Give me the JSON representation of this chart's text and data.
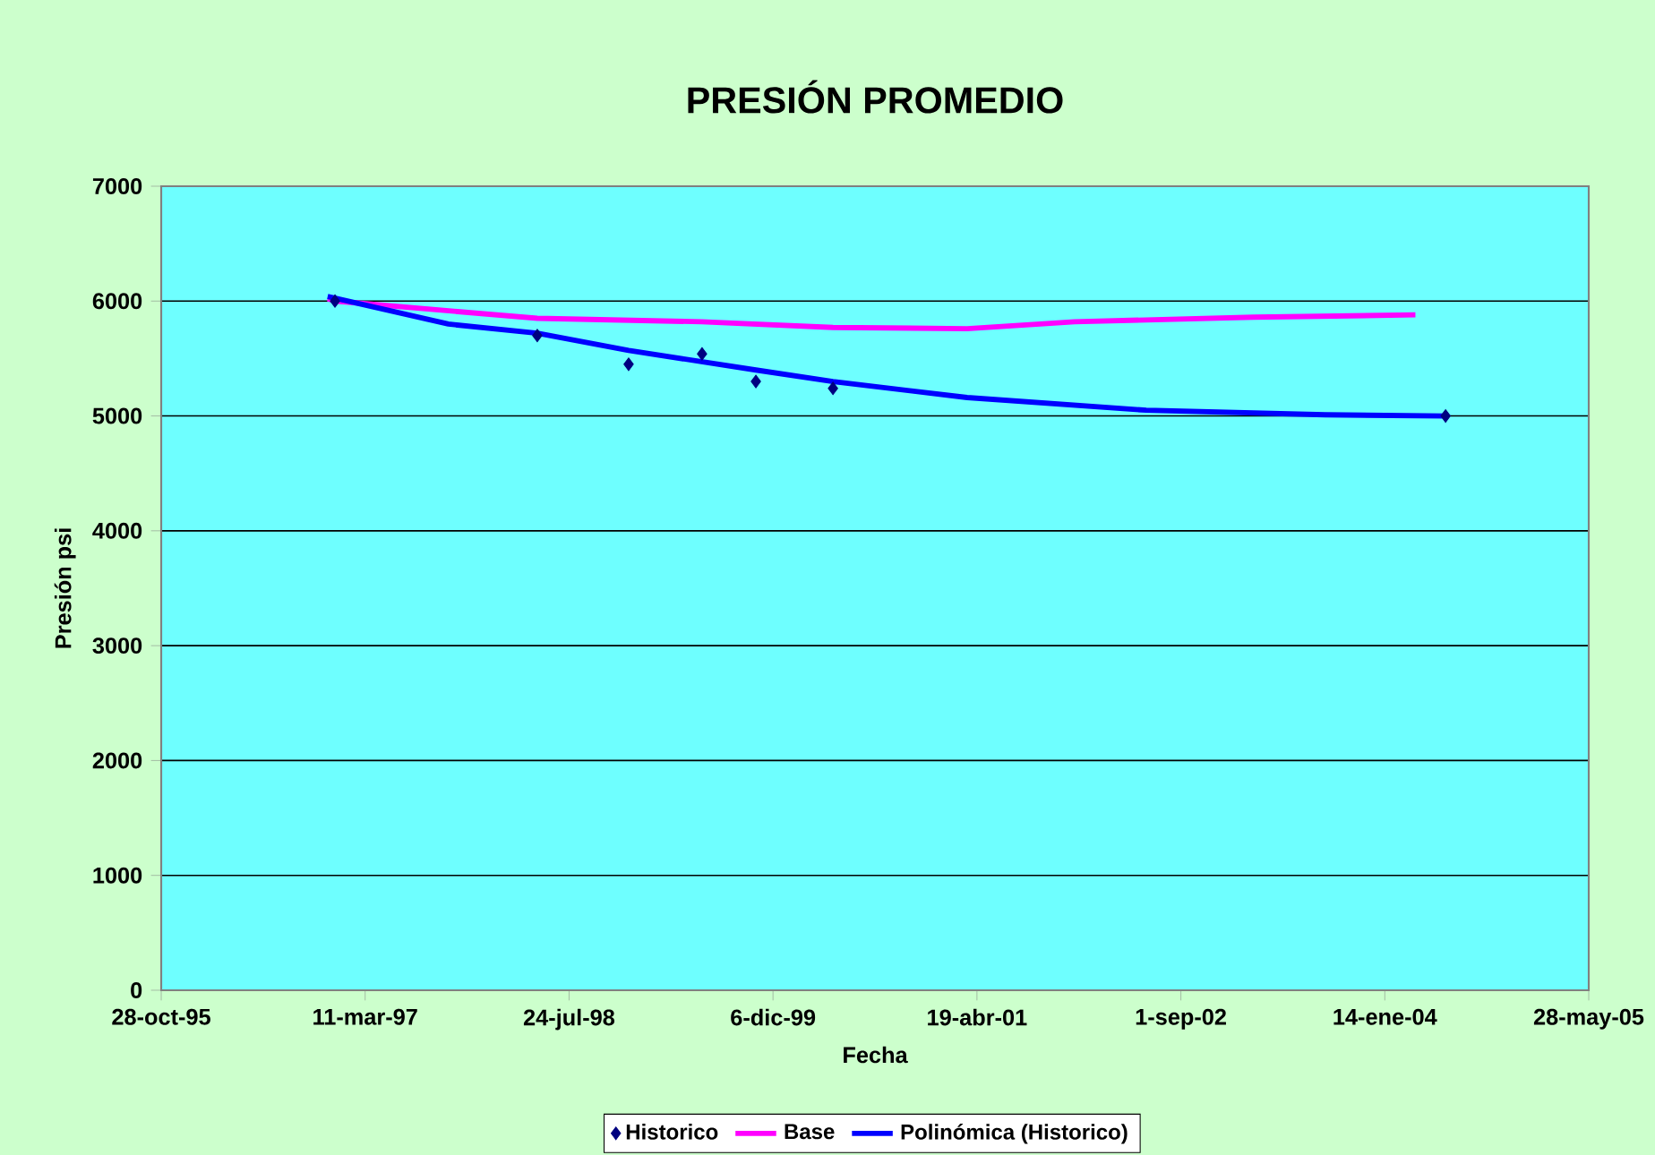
{
  "chart_data": {
    "type": "line",
    "title": "PRESIÓN PROMEDIO",
    "xlabel": "Fecha",
    "ylabel": "Presión psi",
    "series": [
      {
        "name": "Historico",
        "type": "scatter",
        "marker": "diamond",
        "color": "#000080",
        "x": [
          "1996-12-27",
          "1998-05-07",
          "1998-12-17",
          "1999-06-15",
          "1999-10-25",
          "2000-05-01",
          "2004-06-11"
        ],
        "values": [
          6000,
          5700,
          5450,
          5540,
          5300,
          5240,
          5000
        ]
      },
      {
        "name": "Base",
        "color": "#ff00ff",
        "x": [
          "1996-12-09",
          "1996-12-27",
          "1998-05-07",
          "1999-06-15",
          "2000-05-01",
          "2001-03-26",
          "2001-12-14",
          "2003-02-27",
          "2004-03-29"
        ],
        "values": [
          6020,
          6000,
          5850,
          5820,
          5770,
          5760,
          5820,
          5860,
          5880
        ]
      },
      {
        "name": "Polinómica (Historico)",
        "color": "#0000ff",
        "x": [
          "1996-12-09",
          "1997-10-01",
          "1998-05-07",
          "1998-12-17",
          "1999-10-25",
          "2000-05-01",
          "2001-03-26",
          "2002-06-08",
          "2003-08-21",
          "2004-06-11"
        ],
        "values": [
          6040,
          5800,
          5720,
          5570,
          5400,
          5300,
          5160,
          5050,
          5010,
          5000
        ]
      }
    ],
    "xlim": [
      "1995-10-28",
      "2005-05-28"
    ],
    "xticks": [
      {
        "value": "1995-10-28",
        "label": "28-oct-95"
      },
      {
        "value": "1997-03-11",
        "label": "11-mar-97"
      },
      {
        "value": "1998-07-24",
        "label": "24-jul-98"
      },
      {
        "value": "1999-12-06",
        "label": "6-dic-99"
      },
      {
        "value": "2001-04-19",
        "label": "19-abr-01"
      },
      {
        "value": "2002-09-01",
        "label": "1-sep-02"
      },
      {
        "value": "2004-01-14",
        "label": "14-ene-04"
      },
      {
        "value": "2005-05-28",
        "label": "28-may-05"
      }
    ],
    "ylim": [
      0,
      7000
    ],
    "yticks": [
      0,
      1000,
      2000,
      3000,
      4000,
      5000,
      6000,
      7000
    ],
    "grid": "y",
    "legend": "bottom"
  }
}
